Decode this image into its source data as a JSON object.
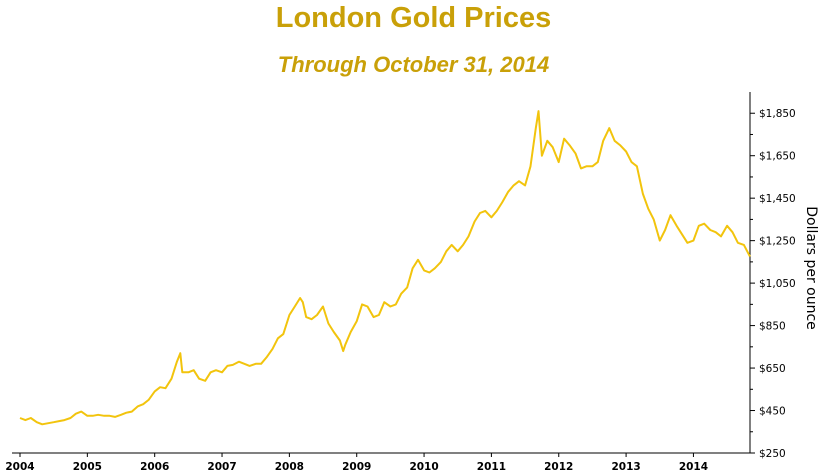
{
  "chart_data": {
    "type": "line",
    "title": "London Gold Prices",
    "subtitle": "Through October 31, 2014",
    "ylabel": "Dollars per ounce",
    "xlabel": "",
    "xlim": [
      2004,
      2014.84
    ],
    "ylim": [
      250,
      1950
    ],
    "yticks": [
      250,
      450,
      650,
      850,
      1050,
      1250,
      1450,
      1650,
      1850
    ],
    "ytick_labels": [
      "$250",
      "$450",
      "$650",
      "$850",
      "$1,050",
      "$1,250",
      "$1,450",
      "$1,650",
      "$1,850"
    ],
    "xticks": [
      2004,
      2005,
      2006,
      2007,
      2008,
      2009,
      2010,
      2011,
      2012,
      2013,
      2014
    ],
    "xtick_labels": [
      "2004",
      "2005",
      "2006",
      "2007",
      "2008",
      "2009",
      "2010",
      "2011",
      "2012",
      "2013",
      "2014"
    ],
    "grid": false,
    "legend": "none",
    "line_color": "#f2c40d",
    "title_color": "#c9a008",
    "series": [
      {
        "x": [
          2004.0,
          2004.08,
          2004.16,
          2004.25,
          2004.33,
          2004.41,
          2004.5,
          2004.58,
          2004.66,
          2004.75,
          2004.83,
          2004.91,
          2005.0,
          2005.08,
          2005.16,
          2005.25,
          2005.33,
          2005.41,
          2005.5,
          2005.58,
          2005.66,
          2005.75,
          2005.83,
          2005.91,
          2006.0,
          2006.08,
          2006.16,
          2006.25,
          2006.33,
          2006.38,
          2006.41,
          2006.5,
          2006.58,
          2006.66,
          2006.75,
          2006.83,
          2006.91,
          2007.0,
          2007.08,
          2007.16,
          2007.25,
          2007.33,
          2007.41,
          2007.5,
          2007.58,
          2007.66,
          2007.75,
          2007.83,
          2007.91,
          2008.0,
          2008.08,
          2008.16,
          2008.2,
          2008.25,
          2008.33,
          2008.41,
          2008.5,
          2008.58,
          2008.66,
          2008.75,
          2008.8,
          2008.83,
          2008.91,
          2009.0,
          2009.08,
          2009.16,
          2009.25,
          2009.33,
          2009.41,
          2009.5,
          2009.58,
          2009.66,
          2009.75,
          2009.83,
          2009.91,
          2010.0,
          2010.08,
          2010.16,
          2010.25,
          2010.33,
          2010.41,
          2010.5,
          2010.58,
          2010.66,
          2010.75,
          2010.83,
          2010.91,
          2011.0,
          2011.08,
          2011.16,
          2011.25,
          2011.33,
          2011.41,
          2011.5,
          2011.58,
          2011.66,
          2011.7,
          2011.75,
          2011.83,
          2011.91,
          2012.0,
          2012.08,
          2012.16,
          2012.25,
          2012.33,
          2012.41,
          2012.5,
          2012.58,
          2012.66,
          2012.75,
          2012.83,
          2012.91,
          2013.0,
          2013.08,
          2013.16,
          2013.25,
          2013.33,
          2013.41,
          2013.5,
          2013.58,
          2013.66,
          2013.75,
          2013.83,
          2013.91,
          2014.0,
          2014.08,
          2014.16,
          2014.25,
          2014.33,
          2014.41,
          2014.5,
          2014.58,
          2014.66,
          2014.75,
          2014.84
        ],
        "values": [
          415,
          405,
          415,
          395,
          385,
          390,
          395,
          400,
          405,
          415,
          435,
          445,
          425,
          425,
          430,
          425,
          425,
          420,
          430,
          440,
          445,
          470,
          480,
          500,
          540,
          560,
          555,
          600,
          680,
          720,
          630,
          630,
          640,
          600,
          590,
          630,
          640,
          630,
          660,
          665,
          680,
          670,
          660,
          670,
          670,
          700,
          740,
          790,
          810,
          900,
          940,
          980,
          960,
          890,
          880,
          900,
          940,
          860,
          820,
          780,
          730,
          760,
          820,
          870,
          950,
          940,
          890,
          900,
          960,
          940,
          950,
          1000,
          1030,
          1120,
          1160,
          1110,
          1100,
          1120,
          1150,
          1200,
          1230,
          1200,
          1230,
          1270,
          1340,
          1380,
          1390,
          1360,
          1390,
          1430,
          1480,
          1510,
          1530,
          1510,
          1600,
          1780,
          1860,
          1650,
          1720,
          1690,
          1620,
          1730,
          1700,
          1660,
          1590,
          1600,
          1600,
          1620,
          1720,
          1780,
          1720,
          1700,
          1670,
          1620,
          1600,
          1470,
          1400,
          1350,
          1250,
          1300,
          1370,
          1320,
          1280,
          1240,
          1250,
          1320,
          1330,
          1300,
          1290,
          1270,
          1320,
          1290,
          1240,
          1230,
          1175
        ]
      }
    ]
  }
}
